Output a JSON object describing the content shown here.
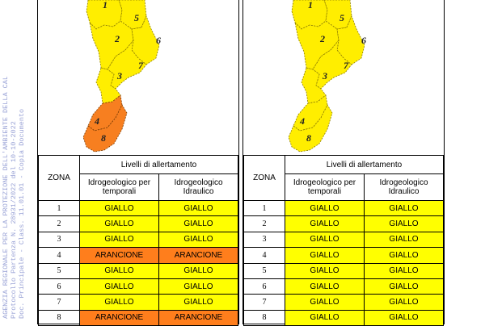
{
  "watermark": {
    "lines": [
      "AGENZIA REGIONALE PER LA PROTEZIONE DELL'AMBIENTE DELLA CALABRIA",
      "Protocollo Partenza N. 28931/2022 del 10-10-2022",
      "Doc. Principale - Class. 11.01.01 - Copia Documento"
    ]
  },
  "colors": {
    "giallo": "#ffff00",
    "arancione": "#ff7e1c",
    "map_yellow": "#ffee00",
    "map_orange": "#f77f20"
  },
  "zone_labels": [
    "1",
    "2",
    "3",
    "4",
    "5",
    "6",
    "7",
    "8"
  ],
  "table_header": {
    "zona": "ZONA",
    "livelli": "Livelli di allertamento",
    "col1": "Idrogeologico per temporali",
    "col2": "Idrogeologico Idraulico"
  },
  "left": {
    "map_zone_levels": {
      "1": "GIALLO",
      "2": "GIALLO",
      "3": "GIALLO",
      "4": "ARANCIONE",
      "5": "GIALLO",
      "6": "GIALLO",
      "7": "GIALLO",
      "8": "ARANCIONE"
    },
    "rows": [
      {
        "zona": "1",
        "temporali": "GIALLO",
        "idraulico": "GIALLO"
      },
      {
        "zona": "2",
        "temporali": "GIALLO",
        "idraulico": "GIALLO"
      },
      {
        "zona": "3",
        "temporali": "GIALLO",
        "idraulico": "GIALLO"
      },
      {
        "zona": "4",
        "temporali": "ARANCIONE",
        "idraulico": "ARANCIONE"
      },
      {
        "zona": "5",
        "temporali": "GIALLO",
        "idraulico": "GIALLO"
      },
      {
        "zona": "6",
        "temporali": "GIALLO",
        "idraulico": "GIALLO"
      },
      {
        "zona": "7",
        "temporali": "GIALLO",
        "idraulico": "GIALLO"
      },
      {
        "zona": "8",
        "temporali": "ARANCIONE",
        "idraulico": "ARANCIONE"
      }
    ]
  },
  "right": {
    "map_zone_levels": {
      "1": "GIALLO",
      "2": "GIALLO",
      "3": "GIALLO",
      "4": "GIALLO",
      "5": "GIALLO",
      "6": "GIALLO",
      "7": "GIALLO",
      "8": "GIALLO"
    },
    "rows": [
      {
        "zona": "1",
        "temporali": "GIALLO",
        "idraulico": "GIALLO"
      },
      {
        "zona": "2",
        "temporali": "GIALLO",
        "idraulico": "GIALLO"
      },
      {
        "zona": "3",
        "temporali": "GIALLO",
        "idraulico": "GIALLO"
      },
      {
        "zona": "4",
        "temporali": "GIALLO",
        "idraulico": "GIALLO"
      },
      {
        "zona": "5",
        "temporali": "GIALLO",
        "idraulico": "GIALLO"
      },
      {
        "zona": "6",
        "temporali": "GIALLO",
        "idraulico": "GIALLO"
      },
      {
        "zona": "7",
        "temporali": "GIALLO",
        "idraulico": "GIALLO"
      },
      {
        "zona": "8",
        "temporali": "GIALLO",
        "idraulico": "GIALLO"
      }
    ]
  }
}
